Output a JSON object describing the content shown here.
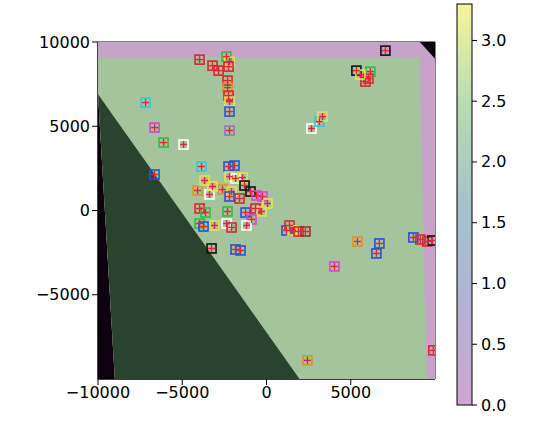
{
  "chart_data": {
    "type": "scatter",
    "xlim": [
      -10000,
      10000
    ],
    "ylim": [
      -10000,
      10000
    ],
    "xticks": [
      {
        "value": -10000,
        "label": "−10000"
      },
      {
        "value": -5000,
        "label": "−5000"
      },
      0,
      5000
    ],
    "yticks": [
      {
        "value": -5000,
        "label": "−5000"
      },
      0,
      5000,
      10000
    ],
    "background": {
      "color": "#0e0211"
    },
    "regions": [
      {
        "color": "#c6a4ca",
        "vertices": [
          [
            -10000,
            10000
          ],
          [
            9100,
            10000
          ],
          [
            10000,
            9000
          ],
          [
            10000,
            -10000
          ],
          [
            -9000,
            -10000
          ],
          [
            -10000,
            6900
          ]
        ]
      },
      {
        "color": "#a3c49d",
        "vertices": [
          [
            -10000,
            9100
          ],
          [
            9100,
            9100
          ],
          [
            9500,
            -10000
          ],
          [
            -9000,
            -10000
          ],
          [
            -10000,
            6900
          ]
        ]
      },
      {
        "color": "#2a432c",
        "vertices": [
          [
            -10000,
            6900
          ],
          [
            1960,
            -10000
          ],
          [
            -9000,
            -10000
          ]
        ]
      }
    ],
    "x": [
      7057,
      6167,
      6049,
      5870,
      5337,
      5574,
      -2372,
      -2194,
      -2253,
      -2312,
      -2312,
      -2253,
      -2194,
      -2194,
      -2194,
      -3202,
      -2846,
      -3972,
      -7175,
      -6641,
      -6108,
      -4922,
      -6641,
      -2253,
      -1897,
      -2194,
      -1838,
      -1423,
      -2609,
      -2075,
      -1305,
      -949,
      -593,
      -237,
      59,
      -1601,
      -2194,
      -2312,
      -1245,
      -652,
      -297,
      -890,
      -2372,
      -2075,
      -1838,
      -1542,
      -1186,
      1186,
      1364,
      1542,
      1897,
      2312,
      2669,
      3143,
      3321,
      4032,
      5396,
      6701,
      6523,
      8717,
      9132,
      9547,
      9844,
      2431,
      9903,
      -4091,
      -3972,
      -3617,
      -3972,
      -3736,
      -3084,
      -3380,
      -3202,
      -3676,
      -3261,
      -3854
    ],
    "y": [
      9488,
      8243,
      7828,
      7650,
      8302,
      8065,
      9132,
      8835,
      8539,
      7709,
      7294,
      6820,
      6464,
      5870,
      4744,
      8598,
      8302,
      8954,
      6404,
      4922,
      4032,
      3914,
      2135,
      2609,
      2668,
      2016,
      1898,
      1957,
      1245,
      1127,
      1483,
      1127,
      889,
      830,
      415,
      712,
      830,
      -59,
      -119,
      119,
      -59,
      -534,
      -771,
      -1008,
      -2313,
      -2372,
      -890,
      -1186,
      -890,
      -1186,
      -1245,
      -1245,
      4863,
      5277,
      5574,
      -3321,
      -1838,
      -1957,
      -2550,
      -1601,
      -1720,
      -1838,
      -1779,
      -8895,
      -8302,
      1186,
      119,
      -119,
      -771,
      -949,
      -890,
      949,
      1423,
      1779,
      -2253,
      2609
    ],
    "series": [
      {
        "marker": "square",
        "colors": [
          "#111111",
          "#2fbf3a",
          "#e82a2a",
          "#d8262b",
          "#111111",
          "#e8e04a",
          "#2fbf3a",
          "#e8e04a",
          "#d8262b",
          "#d8262b",
          "#f08a24",
          "#d8262b",
          "#e8e04a",
          "#2b4fd8",
          "#9c6fc0",
          "#d8262b",
          "#d8262b",
          "#d8262b",
          "#33c7d6",
          "#e040d0",
          "#2fbf3a",
          "#ffffff",
          "#2b4fd8",
          "#2b4fd8",
          "#2b4fd8",
          "#e8e04a",
          "#ffffff",
          "#e8e04a",
          "#f08a24",
          "#e8e04a",
          "#111111",
          "#111111",
          "#e040d0",
          "#e040d0",
          "#e8e04a",
          "#d8262b",
          "#2b4fd8",
          "#2fbf3a",
          "#2b4fd8",
          "#d8262b",
          "#e8e04a",
          "#e040d0",
          "#ffffff",
          "#d8262b",
          "#2b4fd8",
          "#2b4fd8",
          "#ffffff",
          "#2b4fd8",
          "#d8262b",
          "#e8e04a",
          "#d8262b",
          "#8a3a2a",
          "#ffffff",
          "#33c7d6",
          "#e8e04a",
          "#e040d0",
          "#f08a24",
          "#2b4fd8",
          "#2b4fd8",
          "#2b4fd8",
          "#d8262b",
          "#d8262b",
          "#111111",
          "#f08a24",
          "#d8262b",
          "#f08a24",
          "#d8262b",
          "#2fbf3a",
          "#2fbf3a",
          "#2b4fd8",
          "#e8e04a",
          "#ffffff",
          "#e8e04a",
          "#e8e04a",
          "#111111",
          "#33c7d6"
        ]
      },
      {
        "marker": "plus",
        "color": "#e8223a"
      }
    ],
    "colorbar": {
      "range": [
        0,
        3.3
      ],
      "ticks": [
        {
          "value": 0,
          "label": "0.0"
        },
        0.5,
        {
          "value": 1,
          "label": "1.0"
        },
        1.5,
        {
          "value": 2,
          "label": "2.0"
        },
        2.5,
        {
          "value": 3,
          "label": "3.0"
        }
      ],
      "colors": [
        "#cfa6d0",
        "#b3b2d6",
        "#a4c3c9",
        "#b7dcb0",
        "#f7f59c"
      ]
    }
  }
}
